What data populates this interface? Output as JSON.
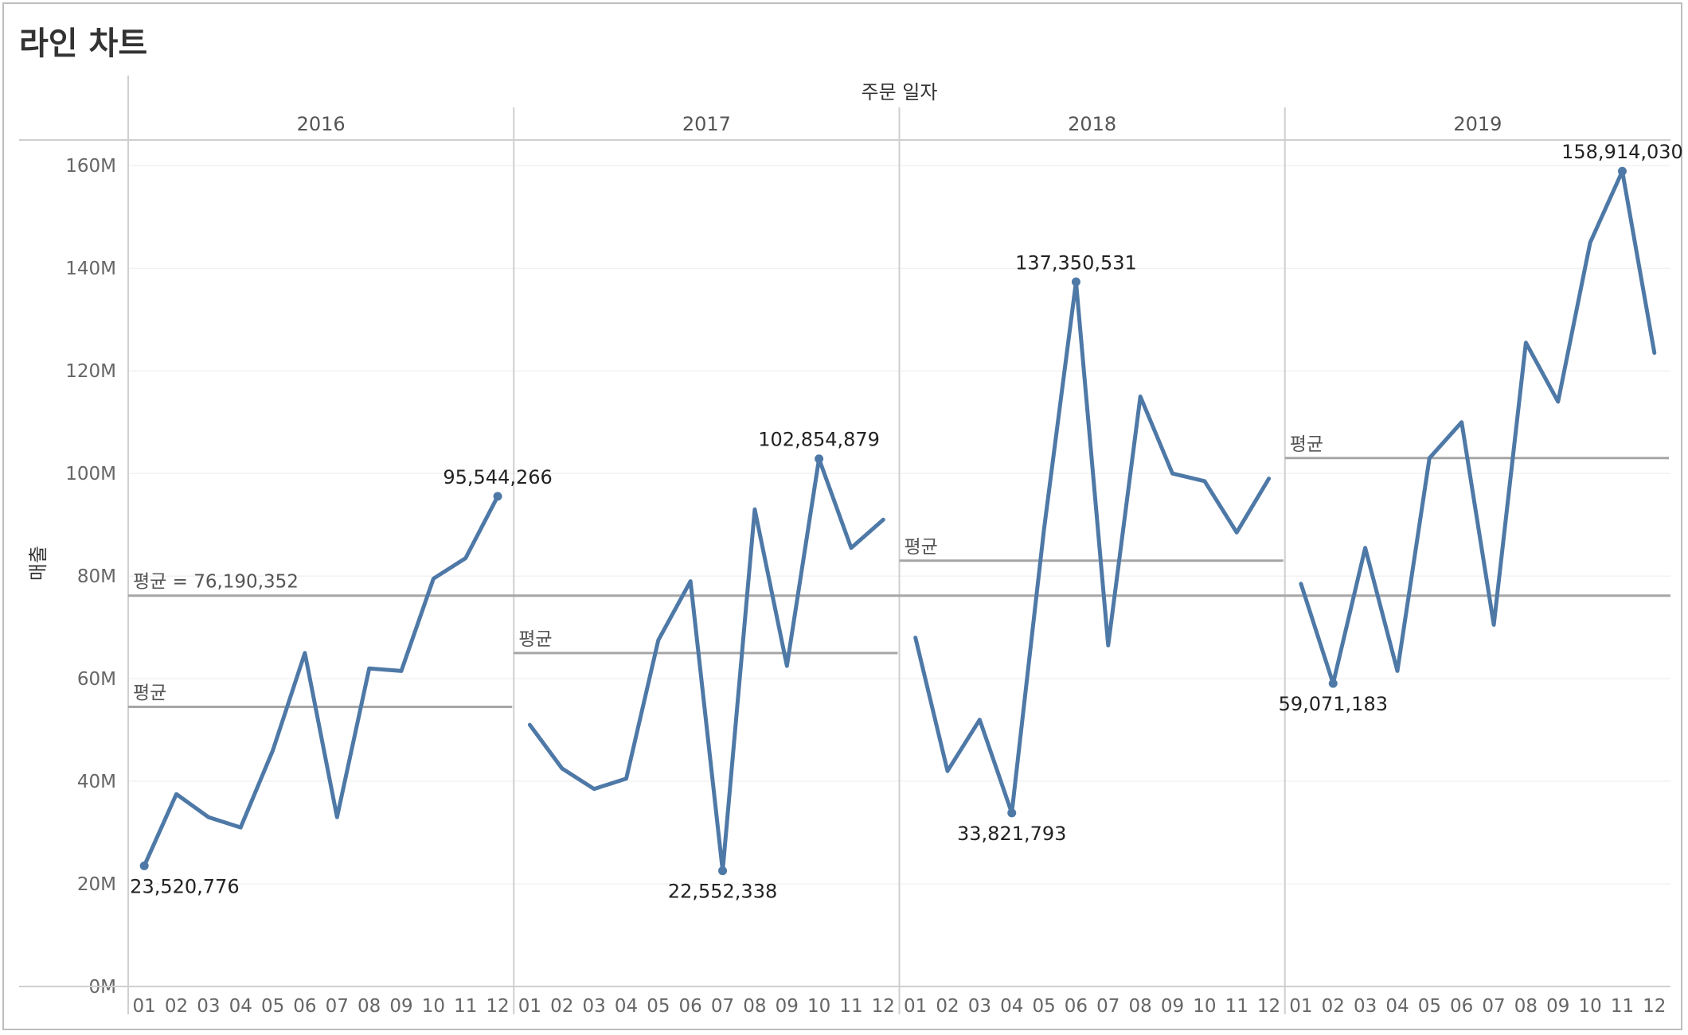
{
  "page": {
    "title": "라인 차트"
  },
  "chart_data": {
    "type": "line",
    "title": "라인 차트",
    "column_header": "주문 일자",
    "ylabel": "매출",
    "ylim": [
      0,
      165000000
    ],
    "y_ticks": [
      0,
      20000000,
      40000000,
      60000000,
      80000000,
      100000000,
      120000000,
      140000000,
      160000000
    ],
    "y_tick_labels": [
      "0M",
      "20M",
      "40M",
      "60M",
      "80M",
      "100M",
      "120M",
      "140M",
      "160M"
    ],
    "months": [
      "01",
      "02",
      "03",
      "04",
      "05",
      "06",
      "07",
      "08",
      "09",
      "10",
      "11",
      "12"
    ],
    "grid": true,
    "line_color": "#4e79a7",
    "reference_line_color": "#a6a6a6",
    "overall_average": {
      "value": 76190352,
      "label": "평균 = 76,190,352"
    },
    "years": [
      {
        "year": "2016",
        "values": [
          23520776,
          37500000,
          33000000,
          31000000,
          46000000,
          65000000,
          33000000,
          62000000,
          61500000,
          79500000,
          83500000,
          95544266
        ],
        "average": {
          "value": 54500000,
          "label": "평균"
        },
        "point_labels": [
          {
            "index": 0,
            "text": "23,520,776",
            "position": "below"
          },
          {
            "index": 11,
            "text": "95,544,266",
            "position": "above"
          }
        ]
      },
      {
        "year": "2017",
        "values": [
          51000000,
          42500000,
          38500000,
          40500000,
          67500000,
          79000000,
          22552338,
          93000000,
          62500000,
          102854879,
          85500000,
          91000000
        ],
        "average": {
          "value": 65000000,
          "label": "평균"
        },
        "point_labels": [
          {
            "index": 6,
            "text": "22,552,338",
            "position": "below"
          },
          {
            "index": 9,
            "text": "102,854,879",
            "position": "above"
          }
        ]
      },
      {
        "year": "2018",
        "values": [
          68000000,
          42000000,
          52000000,
          33821793,
          89000000,
          137350531,
          66500000,
          115000000,
          100000000,
          98500000,
          88500000,
          99000000
        ],
        "average": {
          "value": 83000000,
          "label": "평균"
        },
        "point_labels": [
          {
            "index": 3,
            "text": "33,821,793",
            "position": "below"
          },
          {
            "index": 5,
            "text": "137,350,531",
            "position": "above"
          }
        ]
      },
      {
        "year": "2019",
        "values": [
          78500000,
          59071183,
          85500000,
          61500000,
          103000000,
          110000000,
          70500000,
          125500000,
          114000000,
          145000000,
          158914030,
          123500000
        ],
        "average": {
          "value": 103000000,
          "label": "평균"
        },
        "point_labels": [
          {
            "index": 1,
            "text": "59,071,183",
            "position": "below"
          },
          {
            "index": 10,
            "text": "158,914,030",
            "position": "above"
          }
        ]
      }
    ]
  }
}
